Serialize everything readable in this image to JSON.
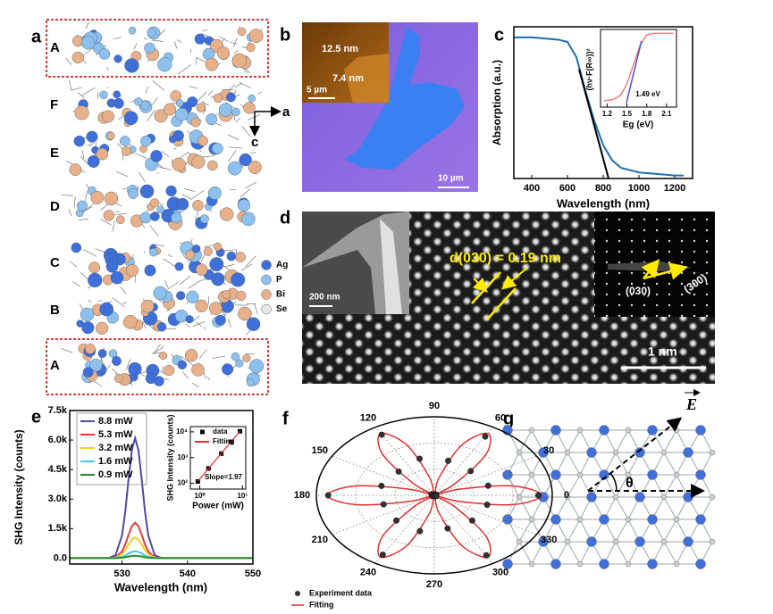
{
  "panel_labels": [
    "a",
    "b",
    "c",
    "d",
    "e",
    "f",
    "g"
  ],
  "panel_a": {
    "layers": [
      "A",
      "F",
      "E",
      "D",
      "C",
      "B",
      "A"
    ],
    "axes": [
      "a",
      "c"
    ],
    "elements": [
      {
        "name": "Ag",
        "color": "#3f6fd8"
      },
      {
        "name": "P",
        "color": "#8ec0ee"
      },
      {
        "name": "Bi",
        "color": "#e8b088"
      },
      {
        "name": "Se",
        "color": "#e6e6e6"
      }
    ]
  },
  "panel_b": {
    "labels": [
      "12.5 nm",
      "7.4 nm",
      "5 µm",
      "10 µm"
    ]
  },
  "panel_d": {
    "spacing": "d(030) = 0.19 nm",
    "planes": [
      "(030)",
      "(300)"
    ],
    "scale_bars": [
      "200 nm",
      "1 nm"
    ]
  },
  "panel_g": {
    "vector": "E",
    "angle": "θ"
  },
  "chart_data": [
    {
      "type": "line",
      "xlabel": "Wavelength (nm)",
      "ylabel": "Absorption (a.u.)",
      "x": [
        300,
        400,
        500,
        550,
        600,
        650,
        700,
        750,
        800,
        850,
        900,
        1000,
        1100,
        1200,
        1250
      ],
      "series": [
        {
          "color": "#1f6fb0",
          "values": [
            0.93,
            0.93,
            0.92,
            0.915,
            0.9,
            0.8,
            0.58,
            0.38,
            0.22,
            0.12,
            0.07,
            0.04,
            0.03,
            0.02,
            0.02
          ]
        }
      ],
      "fit": {
        "x": [
          665,
          830
        ],
        "values": [
          0.72,
          0
        ],
        "color": "#000000"
      },
      "xlim": [
        300,
        1300
      ],
      "ylim": [
        0,
        1
      ],
      "xticks": [
        400,
        600,
        800,
        1000,
        1200
      ]
    },
    {
      "type": "line",
      "xlabel": "Eg (eV)",
      "ylabel": "(hν·F(R∞))²",
      "annotation": "1.49 eV",
      "x": [
        1.15,
        1.3,
        1.4,
        1.5,
        1.6,
        1.7,
        1.8,
        1.9,
        2.1,
        2.2
      ],
      "series": [
        {
          "color": "#f08080",
          "values": [
            0.08,
            0.1,
            0.15,
            0.3,
            0.55,
            0.8,
            0.93,
            0.95,
            0.95,
            0.95
          ]
        }
      ],
      "fit": {
        "x": [
          1.49,
          1.72
        ],
        "values": [
          0.05,
          0.85
        ],
        "color": "#5050d0"
      },
      "xlim": [
        1.1,
        2.25
      ],
      "ylim": [
        0,
        1
      ],
      "xticks": [
        1.2,
        1.5,
        1.8,
        2.1
      ]
    },
    {
      "type": "line",
      "xlabel": "Wavelength (nm)",
      "ylabel": "SHG Intensity (counts)",
      "legend": "upper left",
      "x": [
        522,
        526,
        528,
        529,
        530,
        530.5,
        531,
        531.5,
        532,
        532.5,
        533,
        533.5,
        534,
        535,
        536,
        540,
        550
      ],
      "series": [
        {
          "name": "8.8 mW",
          "color": "#4b4ba8",
          "values": [
            0,
            0,
            8,
            146,
            1159,
            2379,
            4026,
            5490,
            6100,
            5490,
            4026,
            2379,
            1159,
            146,
            8,
            0,
            0
          ]
        },
        {
          "name": "5.3 mW",
          "color": "#e8383d",
          "values": [
            0,
            0,
            2,
            43,
            342,
            702,
            1188,
            1620,
            1800,
            1620,
            1188,
            702,
            342,
            43,
            2,
            0,
            0
          ]
        },
        {
          "name": "3.2 mW",
          "color": "#f0d020",
          "values": [
            0,
            0,
            1,
            25,
            200,
            410,
            693,
            945,
            1050,
            945,
            693,
            410,
            200,
            25,
            1,
            0,
            0
          ]
        },
        {
          "name": "1.6 mW",
          "color": "#40c8e8",
          "values": [
            0,
            0,
            0,
            8,
            67,
            137,
            231,
            315,
            350,
            315,
            231,
            137,
            67,
            8,
            0,
            0,
            0
          ]
        },
        {
          "name": "0.9 mW",
          "color": "#2a8a2a",
          "values": [
            0,
            0,
            0,
            3,
            23,
            47,
            79,
            108,
            120,
            108,
            79,
            47,
            23,
            3,
            0,
            0,
            0
          ]
        }
      ],
      "xlim": [
        522,
        550
      ],
      "ylim": [
        -300,
        7500
      ],
      "xticks": [
        530,
        540,
        550
      ],
      "yticks": [
        {
          "value": 0,
          "label": "0.0"
        },
        {
          "value": 1500,
          "label": "1.5k"
        },
        {
          "value": 3000,
          "label": "3.0k"
        },
        {
          "value": 4500,
          "label": "4.5k"
        },
        {
          "value": 6000,
          "label": "6.0k"
        },
        {
          "value": 7500,
          "label": "7.5k"
        }
      ]
    },
    {
      "type": "line",
      "log": true,
      "xlabel": "Power (mW)",
      "ylabel": "SHG Intensity (counts)",
      "annotation": "Slope=1.97",
      "legend": "upper left",
      "x": [
        0.9,
        1.6,
        3.2,
        5.3,
        8.8
      ],
      "series": [
        {
          "name": "data",
          "color": "#000000",
          "mode": "markers",
          "values": [
            118,
            380,
            1430,
            4100,
            10500
          ]
        },
        {
          "name": "Fitting",
          "color": "#e03030",
          "mode": "line",
          "values": [
            120,
            372,
            1467,
            3950,
            10740
          ]
        }
      ],
      "xlim": [
        0.6,
        12
      ],
      "ylim": [
        60,
        16000
      ],
      "xticks": [
        {
          "value": 1,
          "label": "10⁰"
        },
        {
          "value": 10,
          "label": "10¹"
        }
      ],
      "yticks": [
        {
          "value": 100,
          "label": "10²"
        },
        {
          "value": 1000,
          "label": "10³"
        },
        {
          "value": 10000,
          "label": "10⁴"
        }
      ]
    },
    {
      "type": "polar",
      "rlim": [
        0,
        1.1
      ],
      "thetaticks": [
        0,
        30,
        60,
        90,
        120,
        150,
        180,
        210,
        240,
        270,
        300,
        330
      ],
      "series": [
        {
          "name": "Experiment data",
          "color": "#333333",
          "mode": "markers",
          "theta": [
            0,
            15,
            30,
            45,
            60,
            75,
            90,
            105,
            120,
            135,
            150,
            165,
            180,
            195,
            210,
            225,
            240,
            255,
            270,
            285,
            300,
            315,
            330,
            345
          ],
          "values": [
            0.97,
            0.52,
            0.02,
            0.48,
            0.95,
            0.5,
            0.01,
            0.53,
            0.98,
            0.47,
            0.03,
            0.51,
            0.99,
            0.49,
            0.02,
            0.5,
            0.96,
            0.52,
            0.01,
            0.48,
            0.97,
            0.5,
            0.02,
            0.51
          ]
        },
        {
          "name": "Fitting",
          "color": "#e03030",
          "mode": "line",
          "theta": [
            0,
            10,
            20,
            30,
            40,
            50,
            60,
            70,
            80,
            90,
            100,
            110,
            120,
            130,
            140,
            150,
            160,
            170,
            180,
            190,
            200,
            210,
            220,
            230,
            240,
            250,
            260,
            270,
            280,
            290,
            300,
            310,
            320,
            330,
            340,
            350
          ],
          "values": [
            1,
            0.75,
            0.25,
            0,
            0.25,
            0.75,
            1,
            0.75,
            0.25,
            0,
            0.25,
            0.75,
            1,
            0.75,
            0.25,
            0,
            0.25,
            0.75,
            1,
            0.75,
            0.25,
            0,
            0.25,
            0.75,
            1,
            0.75,
            0.25,
            0,
            0.25,
            0.75,
            1,
            0.75,
            0.25,
            0,
            0.25,
            0.75
          ]
        }
      ]
    }
  ]
}
